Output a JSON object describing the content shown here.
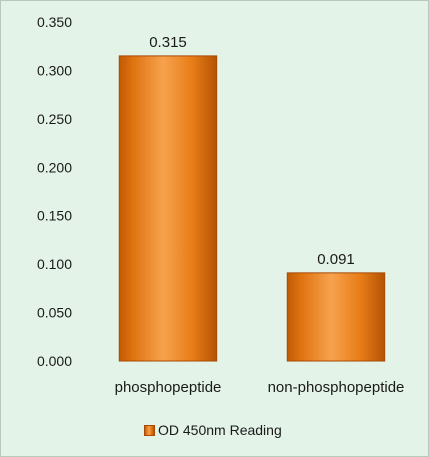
{
  "chart_data": {
    "type": "bar",
    "categories": [
      "phosphopeptide",
      "non-phosphopeptide"
    ],
    "series": [
      {
        "name": "OD 450nm Reading",
        "values": [
          0.315,
          0.091
        ]
      }
    ],
    "data_labels": [
      "0.315",
      "0.091"
    ],
    "yticks": [
      "0.000",
      "0.050",
      "0.100",
      "0.150",
      "0.200",
      "0.250",
      "0.300",
      "0.350"
    ],
    "ylim": [
      0,
      0.35
    ],
    "grid": false,
    "legend_position": "bottom",
    "bar_color": "#f0861e",
    "background_color": "#e3f3e8"
  }
}
